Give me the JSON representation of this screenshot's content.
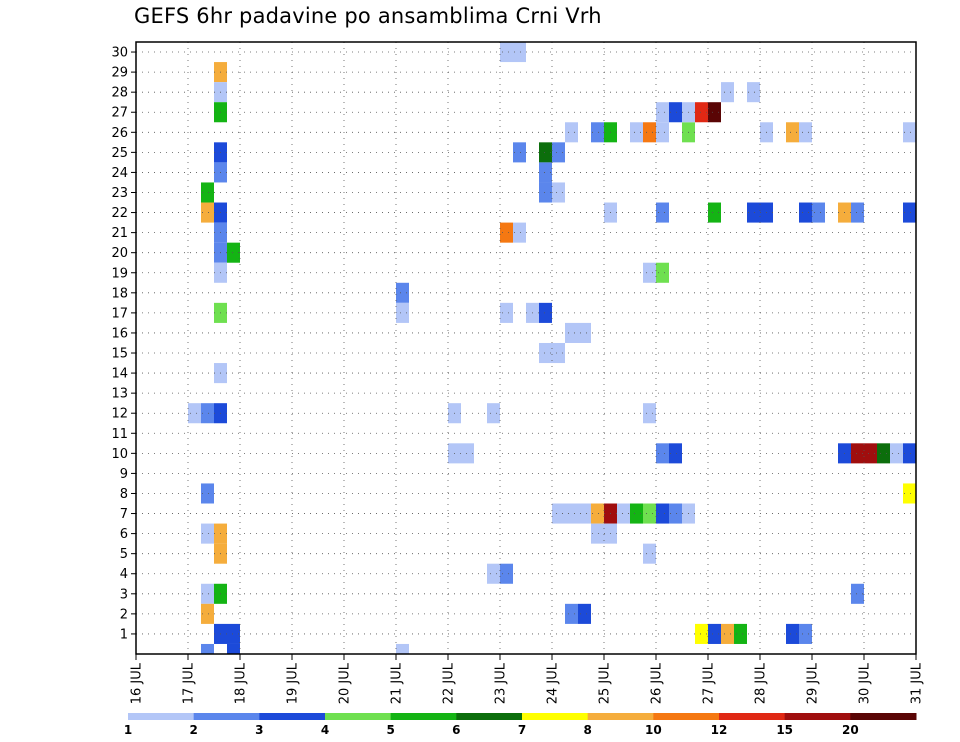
{
  "title": "GEFS 6hr padavine po ansamblima Crni Vrh",
  "chart_data": {
    "type": "heatmap",
    "title": "GEFS 6hr padavine po ansamblima Crni Vrh",
    "x_unit": "day (July)",
    "x_ticks": [
      "16 JUL",
      "17 JUL",
      "18 JUL",
      "19 JUL",
      "20 JUL",
      "21 JUL",
      "22 JUL",
      "23 JUL",
      "24 JUL",
      "25 JUL",
      "26 JUL",
      "27 JUL",
      "28 JUL",
      "29 JUL",
      "30 JUL",
      "31 JUL"
    ],
    "y_ticks": [
      "1",
      "2",
      "3",
      "4",
      "5",
      "6",
      "7",
      "8",
      "9",
      "10",
      "11",
      "12",
      "13",
      "14",
      "15",
      "16",
      "17",
      "18",
      "19",
      "20",
      "21",
      "22",
      "23",
      "24",
      "25",
      "26",
      "27",
      "28",
      "29",
      "30"
    ],
    "xlim": [
      16,
      31
    ],
    "ylim": [
      0,
      30
    ],
    "grid": true,
    "legend_position": "bottom",
    "color_scale": {
      "labels": [
        "1",
        "2",
        "3",
        "4",
        "5",
        "6",
        "7",
        "8",
        "10",
        "12",
        "15",
        "20"
      ],
      "colors": [
        "#b3c6f7",
        "#5b86ec",
        "#1c4ad9",
        "#6fe050",
        "#14b414",
        "#0c6e0c",
        "#ffff00",
        "#f5ad3c",
        "#f57812",
        "#e02814",
        "#a00e0e",
        "#5a0505"
      ]
    },
    "points": [
      [
        17.5,
        29,
        7
      ],
      [
        17.5,
        28,
        0
      ],
      [
        17.5,
        27,
        4
      ],
      [
        17.5,
        25,
        2
      ],
      [
        17.5,
        24,
        1
      ],
      [
        17.25,
        23,
        4
      ],
      [
        17.25,
        22,
        7
      ],
      [
        17.5,
        22,
        2
      ],
      [
        17.5,
        21,
        1
      ],
      [
        17.5,
        20,
        1
      ],
      [
        17.75,
        20,
        4
      ],
      [
        17.5,
        19,
        0
      ],
      [
        17.5,
        17,
        3
      ],
      [
        17.5,
        14,
        0
      ],
      [
        17.0,
        12,
        0
      ],
      [
        17.25,
        12,
        1
      ],
      [
        17.5,
        12,
        2
      ],
      [
        17.25,
        8,
        1
      ],
      [
        17.25,
        6,
        0
      ],
      [
        17.5,
        6,
        7
      ],
      [
        17.5,
        5,
        7
      ],
      [
        17.25,
        3,
        0
      ],
      [
        17.5,
        3,
        4
      ],
      [
        17.25,
        2,
        7
      ],
      [
        17.5,
        1,
        2
      ],
      [
        17.75,
        1,
        2
      ],
      [
        17.25,
        0,
        1
      ],
      [
        17.75,
        0,
        2
      ],
      [
        21.0,
        18,
        1
      ],
      [
        21.0,
        17,
        0
      ],
      [
        21.0,
        0,
        0
      ],
      [
        22.0,
        12,
        0
      ],
      [
        22.0,
        10,
        0
      ],
      [
        22.25,
        10,
        0
      ],
      [
        22.75,
        12,
        0
      ],
      [
        22.75,
        4,
        0
      ],
      [
        23.0,
        4,
        1
      ],
      [
        23.0,
        30,
        0
      ],
      [
        23.25,
        30,
        0
      ],
      [
        23.0,
        21,
        8
      ],
      [
        23.25,
        21,
        0
      ],
      [
        23.0,
        17,
        0
      ],
      [
        23.25,
        25,
        1
      ],
      [
        23.5,
        17,
        0
      ],
      [
        23.75,
        17,
        2
      ],
      [
        23.75,
        25,
        5
      ],
      [
        23.75,
        24,
        1
      ],
      [
        23.75,
        23,
        1
      ],
      [
        23.75,
        15,
        0
      ],
      [
        24.0,
        15,
        0
      ],
      [
        24.0,
        25,
        1
      ],
      [
        24.0,
        23,
        0
      ],
      [
        24.0,
        7,
        0
      ],
      [
        24.25,
        7,
        0
      ],
      [
        24.5,
        7,
        0
      ],
      [
        24.25,
        26,
        0
      ],
      [
        24.25,
        16,
        0
      ],
      [
        24.5,
        16,
        0
      ],
      [
        24.25,
        2,
        1
      ],
      [
        24.5,
        2,
        2
      ],
      [
        24.75,
        26,
        1
      ],
      [
        25.0,
        26,
        4
      ],
      [
        24.75,
        7,
        7
      ],
      [
        25.0,
        7,
        10
      ],
      [
        24.75,
        6,
        0
      ],
      [
        25.0,
        6,
        0
      ],
      [
        25.0,
        22,
        0
      ],
      [
        25.25,
        7,
        0
      ],
      [
        25.5,
        7,
        4
      ],
      [
        25.75,
        7,
        3
      ],
      [
        26.0,
        7,
        2
      ],
      [
        26.25,
        7,
        1
      ],
      [
        26.5,
        7,
        0
      ],
      [
        25.5,
        26,
        0
      ],
      [
        25.75,
        26,
        8
      ],
      [
        26.0,
        26,
        0
      ],
      [
        26.5,
        26,
        3
      ],
      [
        25.75,
        19,
        0
      ],
      [
        26.0,
        19,
        3
      ],
      [
        25.75,
        5,
        0
      ],
      [
        25.75,
        12,
        0
      ],
      [
        26.0,
        27,
        0
      ],
      [
        26.25,
        27,
        2
      ],
      [
        26.5,
        27,
        0
      ],
      [
        26.75,
        27,
        9
      ],
      [
        27.0,
        27,
        11
      ],
      [
        26.0,
        22,
        1
      ],
      [
        26.0,
        10,
        1
      ],
      [
        26.25,
        10,
        2
      ],
      [
        27.25,
        28,
        0
      ],
      [
        27.0,
        22,
        4
      ],
      [
        26.75,
        1,
        6
      ],
      [
        27.0,
        1,
        2
      ],
      [
        27.25,
        1,
        7
      ],
      [
        27.5,
        1,
        4
      ],
      [
        27.75,
        28,
        0
      ],
      [
        28.0,
        26,
        0
      ],
      [
        27.75,
        22,
        2
      ],
      [
        28.0,
        22,
        2
      ],
      [
        28.5,
        26,
        7
      ],
      [
        28.75,
        26,
        0
      ],
      [
        28.75,
        22,
        2
      ],
      [
        29.0,
        22,
        1
      ],
      [
        28.5,
        1,
        2
      ],
      [
        28.75,
        1,
        1
      ],
      [
        29.5,
        22,
        7
      ],
      [
        29.75,
        22,
        1
      ],
      [
        29.75,
        3,
        1
      ],
      [
        29.5,
        10,
        2
      ],
      [
        29.75,
        10,
        10
      ],
      [
        30.0,
        10,
        10
      ],
      [
        30.25,
        10,
        5
      ],
      [
        30.5,
        10,
        0
      ],
      [
        30.75,
        10,
        2
      ],
      [
        30.75,
        26,
        0
      ],
      [
        30.75,
        22,
        2
      ],
      [
        30.75,
        8,
        6
      ]
    ]
  }
}
